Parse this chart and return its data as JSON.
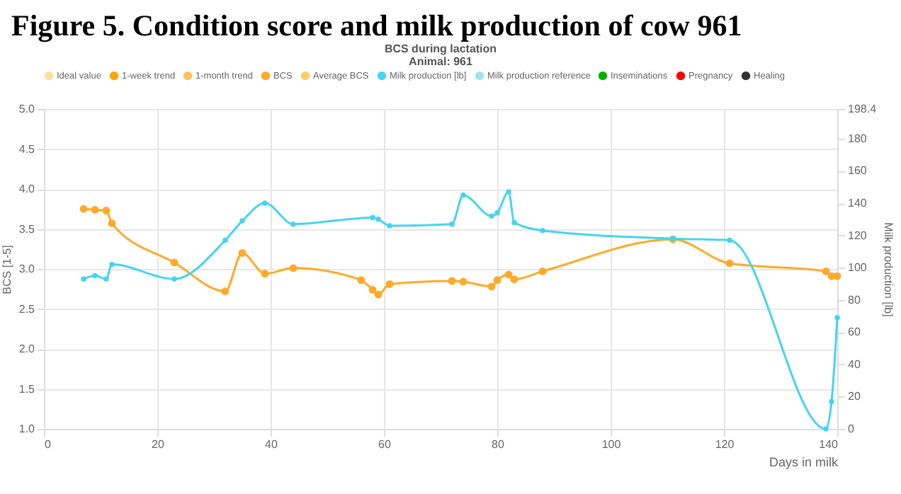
{
  "chart_data": {
    "type": "line",
    "title": "Figure 5. Condition score and milk production of cow 961",
    "subtitle": "BCS during lactation",
    "annotations": [
      "Animal: 961"
    ],
    "xlabel": "Days in milk",
    "ylabel": "BCS [1-5]",
    "y2label": "Milk production [lb]",
    "xlim": [
      0,
      140
    ],
    "xticks": [
      0,
      20,
      40,
      60,
      80,
      100,
      120,
      140
    ],
    "ylim": [
      1,
      5
    ],
    "yticks": [
      {
        "value": 1,
        "label": "1.0"
      },
      {
        "value": 1.5,
        "label": "1.5"
      },
      {
        "value": 2,
        "label": "2.0"
      },
      {
        "value": 2.5,
        "label": "2.5"
      },
      {
        "value": 3,
        "label": "3.0"
      },
      {
        "value": 3.5,
        "label": "3.5"
      },
      {
        "value": 4,
        "label": "4.0"
      },
      {
        "value": 4.5,
        "label": "4.5"
      },
      {
        "value": 5,
        "label": "5.0"
      }
    ],
    "y2lim": [
      0,
      198.4
    ],
    "y2ticks": [
      0,
      20,
      40,
      60,
      80,
      100,
      120,
      140,
      160,
      180,
      198.4
    ],
    "grid": true,
    "legend": "top",
    "marker": "circle",
    "line_style": "solid",
    "series": [
      {
        "name": "Ideal value",
        "color": "#ffe0a0"
      },
      {
        "name": "1-week trend",
        "color": "#ffa500"
      },
      {
        "name": "1-month trend",
        "color": "#ffc060"
      },
      {
        "name": "BCS",
        "color": "#ffaa2a",
        "x": [
          7,
          9,
          11,
          12,
          23,
          32,
          35,
          39,
          44,
          56,
          58,
          59,
          61,
          72,
          74,
          79,
          80,
          82,
          83,
          88,
          111,
          121,
          138,
          139,
          140
        ],
        "values": [
          3.75,
          3.74,
          3.73,
          3.57,
          3.08,
          2.72,
          3.2,
          2.94,
          3.01,
          2.86,
          2.74,
          2.68,
          2.81,
          2.85,
          2.84,
          2.78,
          2.86,
          2.93,
          2.87,
          2.97,
          3.37,
          3.07,
          2.97,
          2.91,
          2.91
        ]
      },
      {
        "name": "Average BCS",
        "color": "#ffcc66"
      },
      {
        "name": "Milk production [lb]",
        "color": "#45d4f0",
        "axis": "y2",
        "x": [
          7,
          9,
          11,
          12,
          23,
          32,
          35,
          39,
          44,
          58,
          59,
          61,
          72,
          74,
          79,
          80,
          82,
          83,
          88,
          111,
          121,
          138,
          139,
          140
        ],
        "values": [
          93,
          95,
          93,
          102,
          93,
          117,
          129,
          140,
          127,
          131,
          130,
          126,
          127,
          145,
          132,
          134,
          147,
          128,
          123,
          118,
          117,
          0,
          17,
          69
        ]
      },
      {
        "name": "Milk production reference",
        "color": "#a0e4f0"
      },
      {
        "name": "Inseminations",
        "color": "#00b000"
      },
      {
        "name": "Pregnancy",
        "color": "#ff0000"
      },
      {
        "name": "Healing",
        "color": "#333333"
      }
    ]
  }
}
